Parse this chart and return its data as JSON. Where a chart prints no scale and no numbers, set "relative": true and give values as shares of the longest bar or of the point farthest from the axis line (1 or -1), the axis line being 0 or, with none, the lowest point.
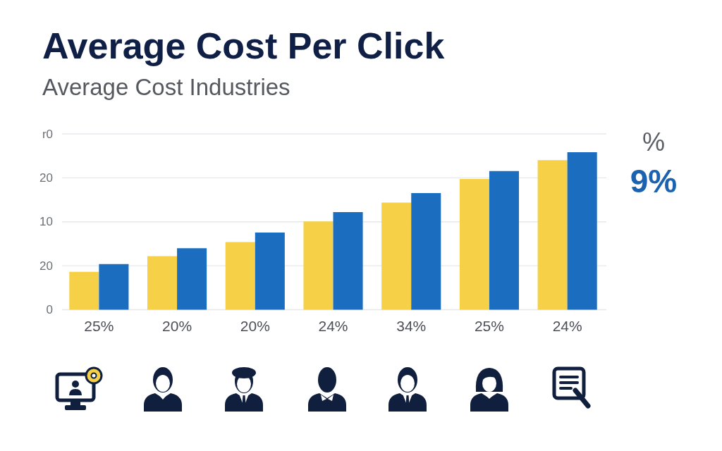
{
  "chart_data": {
    "type": "bar",
    "title": "Average Cost Per Click",
    "subtitle": "Average Cost Industries",
    "categories": [
      "25%",
      "20%",
      "20%",
      "24%",
      "34%",
      "25%",
      "24%"
    ],
    "series": [
      {
        "color": "#f6d046",
        "values": [
          0.24,
          0.34,
          0.43,
          0.56,
          0.68,
          0.83,
          0.95
        ]
      },
      {
        "color": "#1b6dbf",
        "values": [
          0.29,
          0.39,
          0.49,
          0.62,
          0.74,
          0.88,
          1
        ]
      }
    ],
    "relative": true,
    "grid": "y",
    "annotations": [
      "r0",
      "20",
      "10",
      "20",
      "0",
      "%",
      "9%"
    ]
  }
}
